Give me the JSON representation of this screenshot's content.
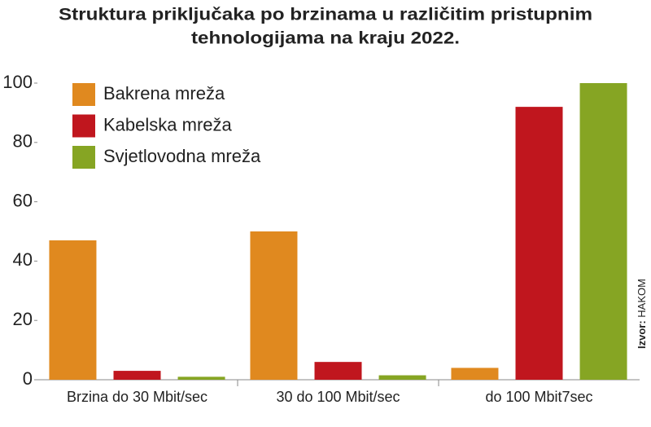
{
  "chart_data": {
    "type": "bar",
    "title": [
      "Struktura priključaka po brzinama u različitim pristupnim",
      "tehnologijama na kraju 2022."
    ],
    "categories": [
      "Brzina do 30 Mbit/sec",
      "30 do 100 Mbit/sec",
      "do 100 Mbit7sec"
    ],
    "series": [
      {
        "name": "Bakrena mreža",
        "color": "#e0891f",
        "values": [
          47,
          50,
          4
        ]
      },
      {
        "name": "Kabelska mreža",
        "color": "#c0161e",
        "values": [
          3,
          6,
          92
        ]
      },
      {
        "name": "Svjetlovodna mreža",
        "color": "#86a523",
        "values": [
          1,
          1.5,
          100
        ]
      }
    ],
    "ylim": [
      0,
      100
    ],
    "yticks": [
      0,
      20,
      40,
      60,
      80,
      100
    ],
    "legend": "top-left",
    "source_label": "Izvor:",
    "source": "HAKOM"
  }
}
